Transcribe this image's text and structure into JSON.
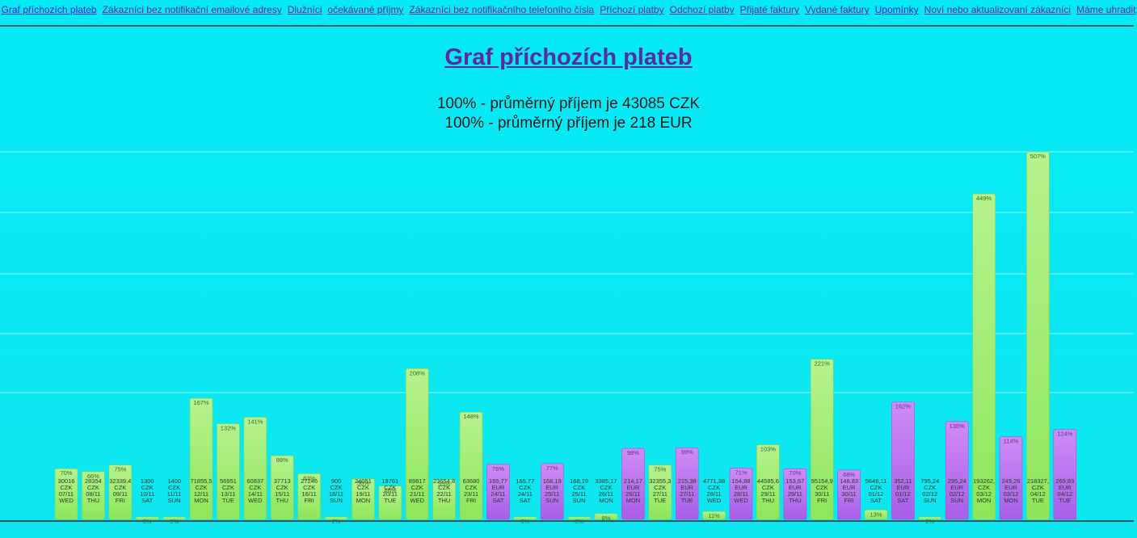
{
  "nav": {
    "links": [
      {
        "label": "Graf příchozích plateb",
        "state": "active"
      },
      {
        "label": "Zákazníci bez notifikační emailové adresy",
        "state": "visited"
      },
      {
        "label": "Dlužníci",
        "state": "visited"
      },
      {
        "label": "očekávané příjmy",
        "state": "visited"
      },
      {
        "label": "Zákazníci bez notifikačního telefoního čísla",
        "state": "visited"
      },
      {
        "label": "Příchozí platby",
        "state": "visited"
      },
      {
        "label": "Odchozí platby",
        "state": "visited"
      },
      {
        "label": "Přijaté faktury",
        "state": "visited"
      },
      {
        "label": "Vydané faktury",
        "state": "visited"
      },
      {
        "label": "Upomínky",
        "state": "active"
      },
      {
        "label": "Noví nebo aktualizovaní zákazníci",
        "state": "visited"
      },
      {
        "label": "Máme uhradit",
        "state": "visited"
      }
    ]
  },
  "page": {
    "title": "Graf příchozích plateb",
    "avg_czk": "100% - průměrný příjem je 43085 CZK",
    "avg_eur": "100% - průměrný příjem je 218 EUR"
  },
  "colors": {
    "czk_top": "#b6f28e",
    "czk_bottom": "#8ee65a",
    "eur_top": "#cf8bf5",
    "eur_bottom": "#a85ee8",
    "grid": "#8ef4f8",
    "axis": "#2a5a62"
  },
  "chart_data": {
    "type": "bar",
    "title": "Graf příchozích plateb",
    "ylim": [
      0,
      507
    ],
    "y_unit": "% of average",
    "grid": true,
    "bars": [
      {
        "date": "07/11",
        "day": "WED",
        "amount": "30016",
        "currency": "CZK",
        "percent": 70
      },
      {
        "date": "08/11",
        "day": "THU",
        "amount": "28354",
        "currency": "CZK",
        "percent": 66
      },
      {
        "date": "09/11",
        "day": "FRI",
        "amount": "32339,4",
        "currency": "CZK",
        "percent": 75
      },
      {
        "date": "10/11",
        "day": "SAT",
        "amount": "1300",
        "currency": "CZK",
        "percent": 3
      },
      {
        "date": "11/11",
        "day": "SUN",
        "amount": "1400",
        "currency": "CZK",
        "percent": 3
      },
      {
        "date": "12/11",
        "day": "MON",
        "amount": "71855,5",
        "currency": "CZK",
        "percent": 167
      },
      {
        "date": "13/11",
        "day": "TUE",
        "amount": "56951",
        "currency": "CZK",
        "percent": 132
      },
      {
        "date": "14/11",
        "day": "WED",
        "amount": "60837",
        "currency": "CZK",
        "percent": 141
      },
      {
        "date": "15/11",
        "day": "THU",
        "amount": "37713",
        "currency": "CZK",
        "percent": 88
      },
      {
        "date": "16/11",
        "day": "FRI",
        "amount": "27246",
        "currency": "CZK",
        "percent": 63
      },
      {
        "date": "18/11",
        "day": "SUN",
        "amount": "900",
        "currency": "CZK",
        "percent": 2
      },
      {
        "date": "19/11",
        "day": "MON",
        "amount": "24051",
        "currency": "CZK",
        "percent": 56
      },
      {
        "date": "20/11",
        "day": "TUE",
        "amount": "19761",
        "currency": "CZK",
        "percent": 46
      },
      {
        "date": "21/11",
        "day": "WED",
        "amount": "89817",
        "currency": "CZK",
        "percent": 208
      },
      {
        "date": "22/11",
        "day": "THU",
        "amount": "23654,8",
        "currency": "CZK",
        "percent": 55
      },
      {
        "date": "23/11",
        "day": "FRI",
        "amount": "63680",
        "currency": "CZK",
        "percent": 148
      },
      {
        "date": "24/11",
        "day": "SAT",
        "amount": "165,77",
        "currency": "EUR",
        "percent": 76
      },
      {
        "date": "24/11",
        "day": "SAT",
        "amount": "165,77",
        "currency": "CZK",
        "percent": 0
      },
      {
        "date": "25/11",
        "day": "SUN",
        "amount": "168,19",
        "currency": "EUR",
        "percent": 77
      },
      {
        "date": "25/11",
        "day": "SUN",
        "amount": "168,19",
        "currency": "CZK",
        "percent": 0
      },
      {
        "date": "26/11",
        "day": "MON",
        "amount": "3385,17",
        "currency": "CZK",
        "percent": 8
      },
      {
        "date": "26/11",
        "day": "MON",
        "amount": "214,17",
        "currency": "EUR",
        "percent": 98
      },
      {
        "date": "27/11",
        "day": "TUE",
        "amount": "32355,3",
        "currency": "CZK",
        "percent": 75
      },
      {
        "date": "27/11",
        "day": "TUE",
        "amount": "215,38",
        "currency": "EUR",
        "percent": 99
      },
      {
        "date": "28/11",
        "day": "WED",
        "amount": "4771,38",
        "currency": "CZK",
        "percent": 11
      },
      {
        "date": "28/11",
        "day": "WED",
        "amount": "154,88",
        "currency": "EUR",
        "percent": 71
      },
      {
        "date": "29/11",
        "day": "THU",
        "amount": "44585,6",
        "currency": "CZK",
        "percent": 103
      },
      {
        "date": "29/11",
        "day": "THU",
        "amount": "153,67",
        "currency": "EUR",
        "percent": 70
      },
      {
        "date": "30/11",
        "day": "FRI",
        "amount": "95154,9",
        "currency": "CZK",
        "percent": 221
      },
      {
        "date": "30/11",
        "day": "FRI",
        "amount": "148,83",
        "currency": "EUR",
        "percent": 68
      },
      {
        "date": "01/12",
        "day": "SAT",
        "amount": "5646,11",
        "currency": "CZK",
        "percent": 13
      },
      {
        "date": "01/12",
        "day": "SAT",
        "amount": "352,11",
        "currency": "EUR",
        "percent": 162
      },
      {
        "date": "02/12",
        "day": "SUN",
        "amount": "795,24",
        "currency": "CZK",
        "percent": 2
      },
      {
        "date": "02/12",
        "day": "SUN",
        "amount": "295,24",
        "currency": "EUR",
        "percent": 135
      },
      {
        "date": "03/12",
        "day": "MON",
        "amount": "193262,",
        "currency": "CZK",
        "percent": 449
      },
      {
        "date": "03/12",
        "day": "MON",
        "amount": "249,26",
        "currency": "EUR",
        "percent": 114
      },
      {
        "date": "04/12",
        "day": "TUE",
        "amount": "218327,",
        "currency": "CZK",
        "percent": 507
      },
      {
        "date": "04/12",
        "day": "TUE",
        "amount": "269,83",
        "currency": "EUR",
        "percent": 124
      }
    ]
  }
}
